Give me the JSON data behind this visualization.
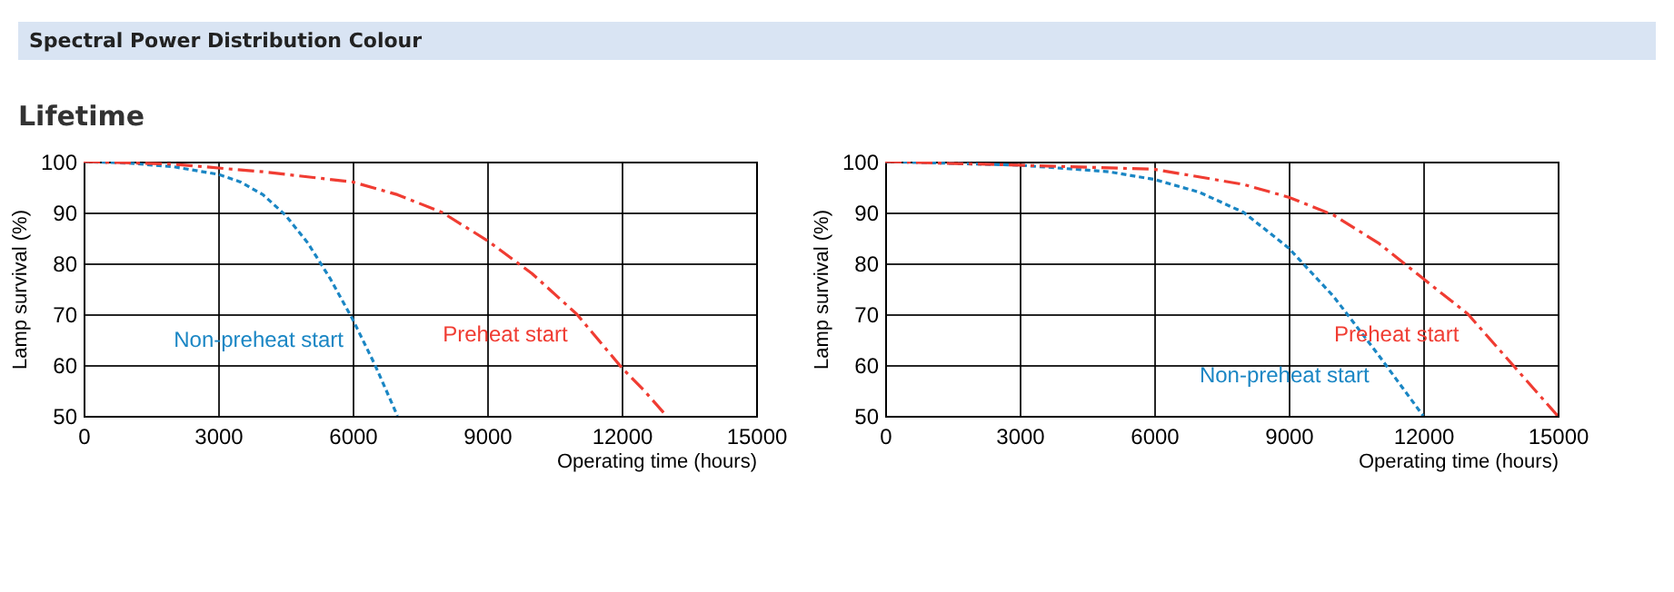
{
  "chart_data": [
    {
      "type": "line",
      "title": "Spectral Power Distribution Colour",
      "subtitle": "Lifetime",
      "xlabel": "Operating time (hours)",
      "ylabel": "Lamp survival  (%)",
      "xlim": [
        0,
        15000
      ],
      "xticks": [
        0,
        3000,
        6000,
        9000,
        12000,
        15000
      ],
      "ylim": [
        50,
        100
      ],
      "yticks": [
        50,
        60,
        70,
        80,
        90,
        100
      ],
      "grid": true,
      "legend": false,
      "series": [
        {
          "name": "Non-preheat start",
          "color": "#1a86c4",
          "line_style": "dotted",
          "x": [
            0,
            1000,
            2000,
            3000,
            3500,
            4000,
            4500,
            5000,
            5500,
            6000,
            6500,
            7000
          ],
          "values": [
            100,
            99.7,
            99,
            97.5,
            96,
            93.5,
            89.5,
            84,
            77,
            69,
            60,
            50
          ]
        },
        {
          "name": "Preheat start",
          "color": "#f03c32",
          "line_style": "dashed",
          "x": [
            0,
            2000,
            4000,
            6000,
            7000,
            8000,
            9000,
            10000,
            11000,
            12000,
            12500,
            13000
          ],
          "values": [
            100,
            99.5,
            98,
            96,
            93.5,
            90,
            84.5,
            78,
            70,
            59.5,
            55,
            50
          ]
        }
      ]
    },
    {
      "type": "line",
      "xlabel": "Operating time (hours)",
      "ylabel": "Lamp survival  (%)",
      "xlim": [
        0,
        15000
      ],
      "xticks": [
        0,
        3000,
        6000,
        9000,
        12000,
        15000
      ],
      "ylim": [
        50,
        100
      ],
      "yticks": [
        50,
        60,
        70,
        80,
        90,
        100
      ],
      "grid": true,
      "legend": false,
      "series": [
        {
          "name": "Non-preheat start",
          "color": "#1a86c4",
          "line_style": "dotted",
          "x": [
            0,
            3000,
            5000,
            6000,
            7000,
            8000,
            9000,
            10000,
            11000,
            12000
          ],
          "values": [
            100,
            99.3,
            98,
            96.5,
            94,
            90,
            83,
            73.5,
            62,
            50
          ]
        },
        {
          "name": "Preheat start",
          "color": "#f03c32",
          "line_style": "dashed",
          "x": [
            0,
            3000,
            6000,
            8000,
            9000,
            10000,
            11000,
            12000,
            13000,
            14000,
            15000
          ],
          "values": [
            100,
            99.3,
            98.5,
            95.5,
            93,
            89.5,
            84,
            77,
            70,
            60,
            50
          ]
        }
      ]
    }
  ]
}
